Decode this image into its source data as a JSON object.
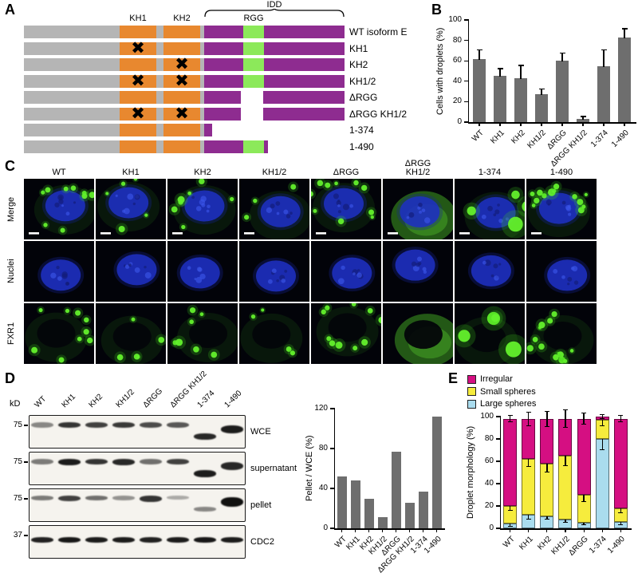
{
  "colors": {
    "bar_gray": "#6e6e6e",
    "construct_gray": "#b5b5b5",
    "construct_orange": "#e8882f",
    "construct_purple": "#8e2c90",
    "construct_green": "#8ce95a",
    "irregular_magenta": "#d50f82",
    "small_spheres_yellow": "#f6ec3d",
    "large_spheres_blue": "#aadcee"
  },
  "panelA": {
    "label": "A",
    "kh1_label": "KH1",
    "kh2_label": "KH2",
    "idd_label": "IDD",
    "rgg_label": "RGG",
    "constructs": [
      {
        "name": "WT isoform E",
        "x_kh1": false,
        "x_kh2": false,
        "has_rgg": true,
        "length": "full"
      },
      {
        "name": "KH1",
        "x_kh1": true,
        "x_kh2": false,
        "has_rgg": true,
        "length": "full"
      },
      {
        "name": "KH2",
        "x_kh1": false,
        "x_kh2": true,
        "has_rgg": true,
        "length": "full"
      },
      {
        "name": "KH1/2",
        "x_kh1": true,
        "x_kh2": true,
        "has_rgg": true,
        "length": "full"
      },
      {
        "name": "ΔRGG",
        "x_kh1": false,
        "x_kh2": false,
        "has_rgg": false,
        "length": "full"
      },
      {
        "name": "ΔRGG KH1/2",
        "x_kh1": true,
        "x_kh2": true,
        "has_rgg": false,
        "length": "full"
      },
      {
        "name": "1-374",
        "x_kh1": false,
        "x_kh2": false,
        "has_rgg": false,
        "length": "374"
      },
      {
        "name": "1-490",
        "x_kh1": false,
        "x_kh2": false,
        "has_rgg": true,
        "length": "490"
      }
    ]
  },
  "panelB": {
    "label": "B"
  },
  "panelC": {
    "label": "C",
    "columns": [
      "WT",
      "KH1",
      "KH2",
      "KH1/2",
      "ΔRGG",
      "ΔRGG\nKH1/2",
      "1-374",
      "1-490"
    ],
    "rows": [
      "Merge",
      "Nuclei",
      "FXR1"
    ]
  },
  "panelD": {
    "label": "D",
    "kd_label": "kD",
    "lanes": [
      "WT",
      "KH1",
      "KH2",
      "KH1/2",
      "ΔRGG",
      "ΔRGG KH1/2",
      "1-374",
      "1-490"
    ],
    "blots": [
      {
        "name": "WCE",
        "marker": "75"
      },
      {
        "name": "supernatant",
        "marker": "75"
      },
      {
        "name": "pellet",
        "marker": "75"
      },
      {
        "name": "CDC2",
        "marker": "37"
      }
    ]
  },
  "panelE": {
    "label": "E"
  },
  "chart_data": [
    {
      "id": "panelB_bar",
      "type": "bar",
      "ylabel": "Cells with droplets (%)",
      "ylim": [
        0,
        100
      ],
      "yticks": [
        0,
        20,
        40,
        60,
        80,
        100
      ],
      "categories": [
        "WT",
        "KH1",
        "KH2",
        "KH1/2",
        "ΔRGG",
        "ΔRGG KH1/2",
        "1-374",
        "1-490"
      ],
      "values": [
        62,
        45,
        43,
        27,
        60,
        3,
        55,
        83
      ],
      "errors": [
        8,
        7,
        12,
        5,
        7,
        2,
        15,
        8
      ],
      "bar_color": "#6e6e6e"
    },
    {
      "id": "panelD_bar",
      "type": "bar",
      "ylabel": "Pellet / WCE (%)",
      "ylim": [
        0,
        120
      ],
      "yticks": [
        0,
        40,
        80,
        120
      ],
      "categories": [
        "WT",
        "KH1",
        "KH2",
        "KH1/2",
        "ΔRGG",
        "ΔRGG KH1/2",
        "1-374",
        "1-490"
      ],
      "values": [
        52,
        48,
        30,
        11,
        77,
        26,
        37,
        112
      ],
      "bar_color": "#6e6e6e"
    },
    {
      "id": "panelE_stacked",
      "type": "stacked_bar",
      "ylabel": "Droplet morphology (%)",
      "ylim": [
        0,
        100
      ],
      "yticks": [
        0,
        20,
        40,
        60,
        80,
        100
      ],
      "categories": [
        "WT",
        "KH1",
        "KH2",
        "KH1/2",
        "ΔRGG",
        "1-374",
        "1-490"
      ],
      "series": [
        {
          "name": "Large spheres",
          "color": "#aadcee",
          "values": [
            4,
            12,
            11,
            8,
            5,
            80,
            6
          ],
          "errors": [
            2,
            4,
            3,
            3,
            2,
            10,
            3
          ]
        },
        {
          "name": "Small spheres",
          "color": "#f6ec3d",
          "values": [
            16,
            50,
            47,
            57,
            25,
            17,
            12
          ],
          "errors": [
            4,
            7,
            8,
            9,
            6,
            5,
            4
          ]
        },
        {
          "name": "Irregular",
          "color": "#d50f82",
          "values": [
            78,
            36,
            40,
            33,
            68,
            3,
            80
          ],
          "errors": [
            3,
            6,
            7,
            8,
            5,
            2,
            3
          ]
        }
      ],
      "legend": [
        "Irregular",
        "Small spheres",
        "Large spheres"
      ]
    }
  ]
}
